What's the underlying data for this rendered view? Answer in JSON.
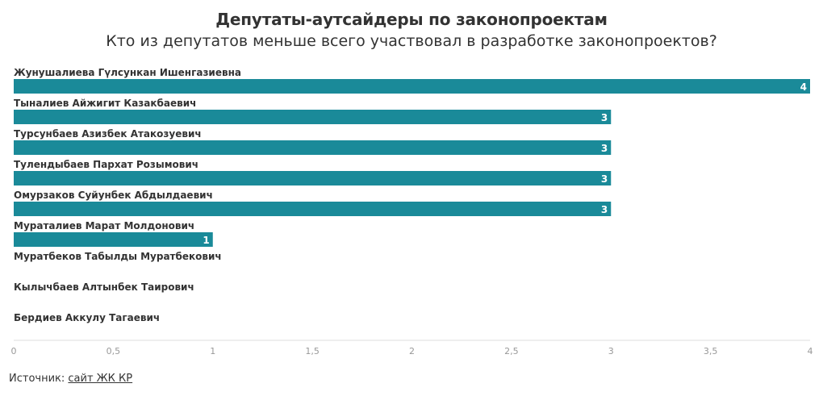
{
  "title": "Депутаты-аутсайдеры по законопроектам",
  "subtitle": "Кто из депутатов меньше всего участвовал в разработке законопроектов?",
  "source": {
    "label": "Источник:",
    "link_text": "сайт ЖК КР"
  },
  "colors": {
    "bar": "#1a8a99",
    "label": "#333333",
    "tick": "#999999",
    "axis": "#dddddd",
    "value_text": "#ffffff"
  },
  "chart_data": {
    "type": "bar",
    "orientation": "horizontal",
    "categories": [
      "Жунушалиева Гүлсункан Ишенгазиевна",
      "Тыналиев Айжигит Казакбаевич",
      "Турсунбаев Азизбек Атакозуевич",
      "Тулендыбаев Пархат Розымович",
      "Омурзаков Суйунбек Абдылдаевич",
      "Мураталиев Марат Молдонович",
      "Муратбеков Табылды Муратбекович",
      "Кылычбаев Алтынбек Таирович",
      "Бердиев Аккулу Тагаевич"
    ],
    "values": [
      4,
      3,
      3,
      3,
      3,
      1,
      0,
      0,
      0
    ],
    "value_labels": [
      "4",
      "3",
      "3",
      "3",
      "3",
      "1",
      "",
      "",
      ""
    ],
    "xlim": [
      0,
      4
    ],
    "xticks": [
      0,
      0.5,
      1,
      1.5,
      2,
      2.5,
      3,
      3.5,
      4
    ],
    "xtick_labels": [
      "0",
      "0,5",
      "1",
      "1,5",
      "2",
      "2,5",
      "3",
      "3,5",
      "4"
    ],
    "grid": false
  }
}
